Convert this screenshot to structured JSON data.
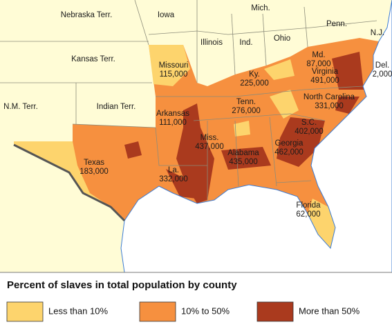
{
  "map": {
    "regions": [
      {
        "name": "Nebraska Terr."
      },
      {
        "name": "Iowa"
      },
      {
        "name": "Mich."
      },
      {
        "name": "Penn."
      },
      {
        "name": "N.J."
      },
      {
        "name": "Kansas Terr."
      },
      {
        "name": "Illinois"
      },
      {
        "name": "Ind."
      },
      {
        "name": "Ohio"
      },
      {
        "name": "Missouri",
        "slaves": "115,000"
      },
      {
        "name": "Md.",
        "slaves": "87,000"
      },
      {
        "name": "Del.",
        "slaves": "2,000"
      },
      {
        "name": "Virginia",
        "slaves": "491,000"
      },
      {
        "name": "Ky.",
        "slaves": "225,000"
      },
      {
        "name": "N.M. Terr."
      },
      {
        "name": "Indian Terr."
      },
      {
        "name": "North Carolina",
        "slaves": "331,000"
      },
      {
        "name": "Tenn.",
        "slaves": "276,000"
      },
      {
        "name": "Arkansas",
        "slaves": "111,000"
      },
      {
        "name": "S.C.",
        "slaves": "402,000"
      },
      {
        "name": "Miss.",
        "slaves": "437,000"
      },
      {
        "name": "Georgia",
        "slaves": "462,000"
      },
      {
        "name": "Alabama",
        "slaves": "435,000"
      },
      {
        "name": "Texas",
        "slaves": "183,000"
      },
      {
        "name": "La.",
        "slaves": "332,000"
      },
      {
        "name": "Florida",
        "slaves": "62,000"
      }
    ]
  },
  "legend": {
    "title": "Percent of slaves in total population by county",
    "items": [
      {
        "label": "Less than 10%",
        "color": "#fdd46d"
      },
      {
        "label": "10% to 50%",
        "color": "#f6903f"
      },
      {
        "label": "More than 50%",
        "color": "#aa3a1e"
      }
    ]
  }
}
